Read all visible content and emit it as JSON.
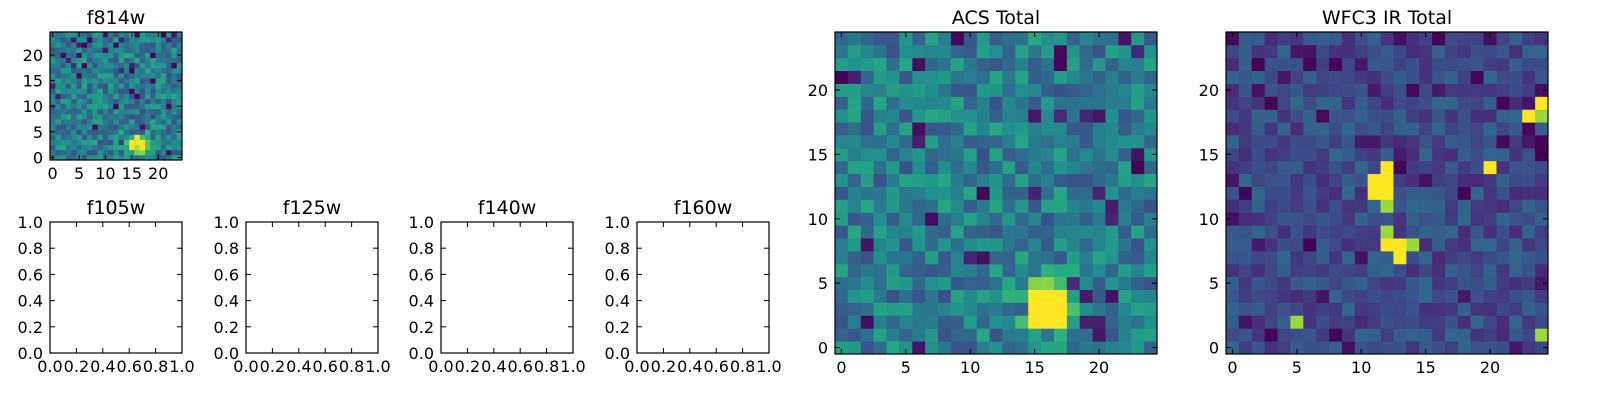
{
  "chart_data": [
    {
      "type": "heatmap",
      "title": "f814w",
      "colormap": "viridis",
      "grid": false,
      "xlim": [
        -0.5,
        24.5
      ],
      "ylim": [
        -0.5,
        24.5
      ],
      "xticks": [
        0,
        5,
        10,
        15,
        20
      ],
      "yticks": [
        0,
        5,
        10,
        15,
        20
      ],
      "image_size": [
        25,
        25
      ],
      "source": {
        "x": 16,
        "y": 3,
        "note": "bright compact source"
      }
    },
    {
      "type": "heatmap",
      "title": "f105w",
      "empty": true,
      "xlim": [
        0,
        1
      ],
      "ylim": [
        0,
        1
      ],
      "xticks": [
        "0.0",
        "0.2",
        "0.4",
        "0.6",
        "0.8",
        "1.0"
      ],
      "yticks": [
        "0.0",
        "0.2",
        "0.4",
        "0.6",
        "0.8",
        "1.0"
      ]
    },
    {
      "type": "heatmap",
      "title": "f125w",
      "empty": true,
      "xlim": [
        0,
        1
      ],
      "ylim": [
        0,
        1
      ],
      "xticks": [
        "0.0",
        "0.2",
        "0.4",
        "0.6",
        "0.8",
        "1.0"
      ],
      "yticks": [
        "0.0",
        "0.2",
        "0.4",
        "0.6",
        "0.8",
        "1.0"
      ]
    },
    {
      "type": "heatmap",
      "title": "f140w",
      "empty": true,
      "xlim": [
        0,
        1
      ],
      "ylim": [
        0,
        1
      ],
      "xticks": [
        "0.0",
        "0.2",
        "0.4",
        "0.6",
        "0.8",
        "1.0"
      ],
      "yticks": [
        "0.0",
        "0.2",
        "0.4",
        "0.6",
        "0.8",
        "1.0"
      ]
    },
    {
      "type": "heatmap",
      "title": "f160w",
      "empty": true,
      "xlim": [
        0,
        1
      ],
      "ylim": [
        0,
        1
      ],
      "xticks": [
        "0.0",
        "0.2",
        "0.4",
        "0.6",
        "0.8",
        "1.0"
      ],
      "yticks": [
        "0.0",
        "0.2",
        "0.4",
        "0.6",
        "0.8",
        "1.0"
      ]
    },
    {
      "type": "heatmap",
      "title": "ACS Total",
      "colormap": "viridis",
      "grid": false,
      "xlim": [
        -0.5,
        24.5
      ],
      "ylim": [
        -0.5,
        24.5
      ],
      "xticks": [
        0,
        5,
        10,
        15,
        20
      ],
      "yticks": [
        0,
        5,
        10,
        15,
        20
      ],
      "image_size": [
        25,
        25
      ],
      "source": {
        "x": 16,
        "y": 3,
        "note": "bright compact source"
      }
    },
    {
      "type": "heatmap",
      "title": "WFC3 IR Total",
      "colormap": "viridis",
      "grid": false,
      "xlim": [
        -0.5,
        24.5
      ],
      "ylim": [
        -0.5,
        24.5
      ],
      "xticks": [
        0,
        5,
        10,
        15,
        20
      ],
      "yticks": [
        0,
        5,
        10,
        15,
        20
      ],
      "image_size": [
        25,
        25
      ],
      "bright_pixels": [
        [
          5,
          2
        ],
        [
          12,
          12
        ],
        [
          12,
          13
        ],
        [
          12,
          11
        ],
        [
          11,
          12
        ],
        [
          11,
          13
        ],
        [
          12,
          9
        ],
        [
          12,
          8
        ],
        [
          13,
          7
        ],
        [
          14,
          8
        ],
        [
          13,
          8
        ],
        [
          20,
          14
        ],
        [
          24,
          18
        ],
        [
          24,
          19
        ],
        [
          23,
          18
        ],
        [
          24,
          1
        ],
        [
          12,
          14
        ]
      ]
    }
  ]
}
